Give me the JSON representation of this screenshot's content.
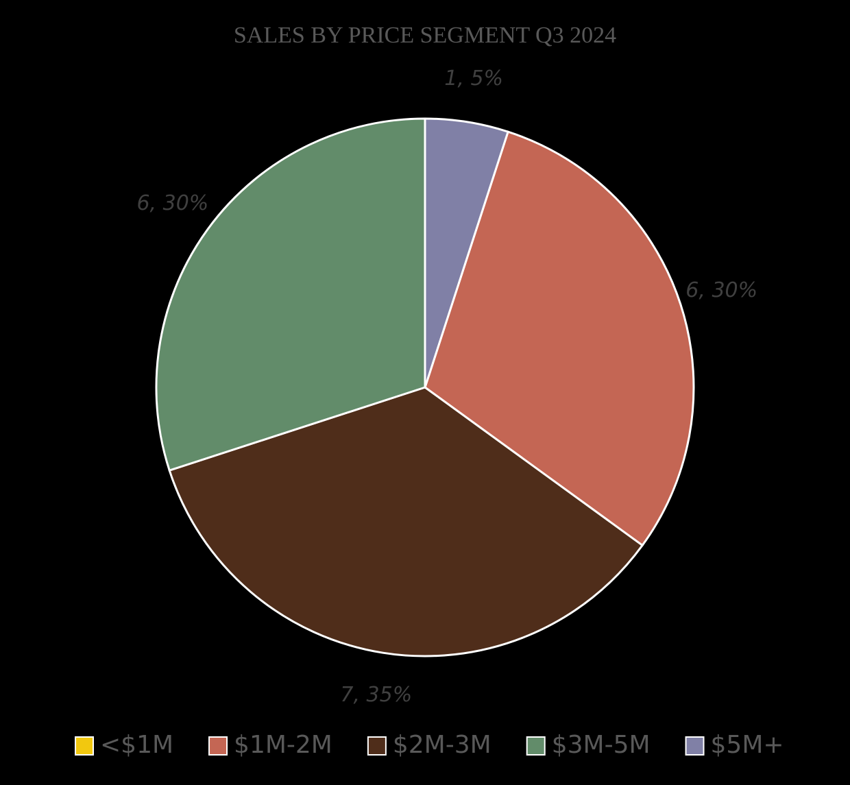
{
  "chart_data": {
    "type": "pie",
    "title": "SALES BY PRICE SEGMENT Q3 2024",
    "categories": [
      "<$1M",
      "$1M-2M",
      "$2M-3M",
      "$3M-5M",
      "$5M+"
    ],
    "values": [
      0,
      6,
      7,
      6,
      1
    ],
    "value_labels": [
      null,
      "6, 30%",
      "7, 35%",
      "6, 30%",
      "1, 5%"
    ],
    "colors": [
      "#f2c80f",
      "#c46654",
      "#4f2d1a",
      "#628c6a",
      "#8080a6"
    ],
    "legend": "bottom"
  }
}
